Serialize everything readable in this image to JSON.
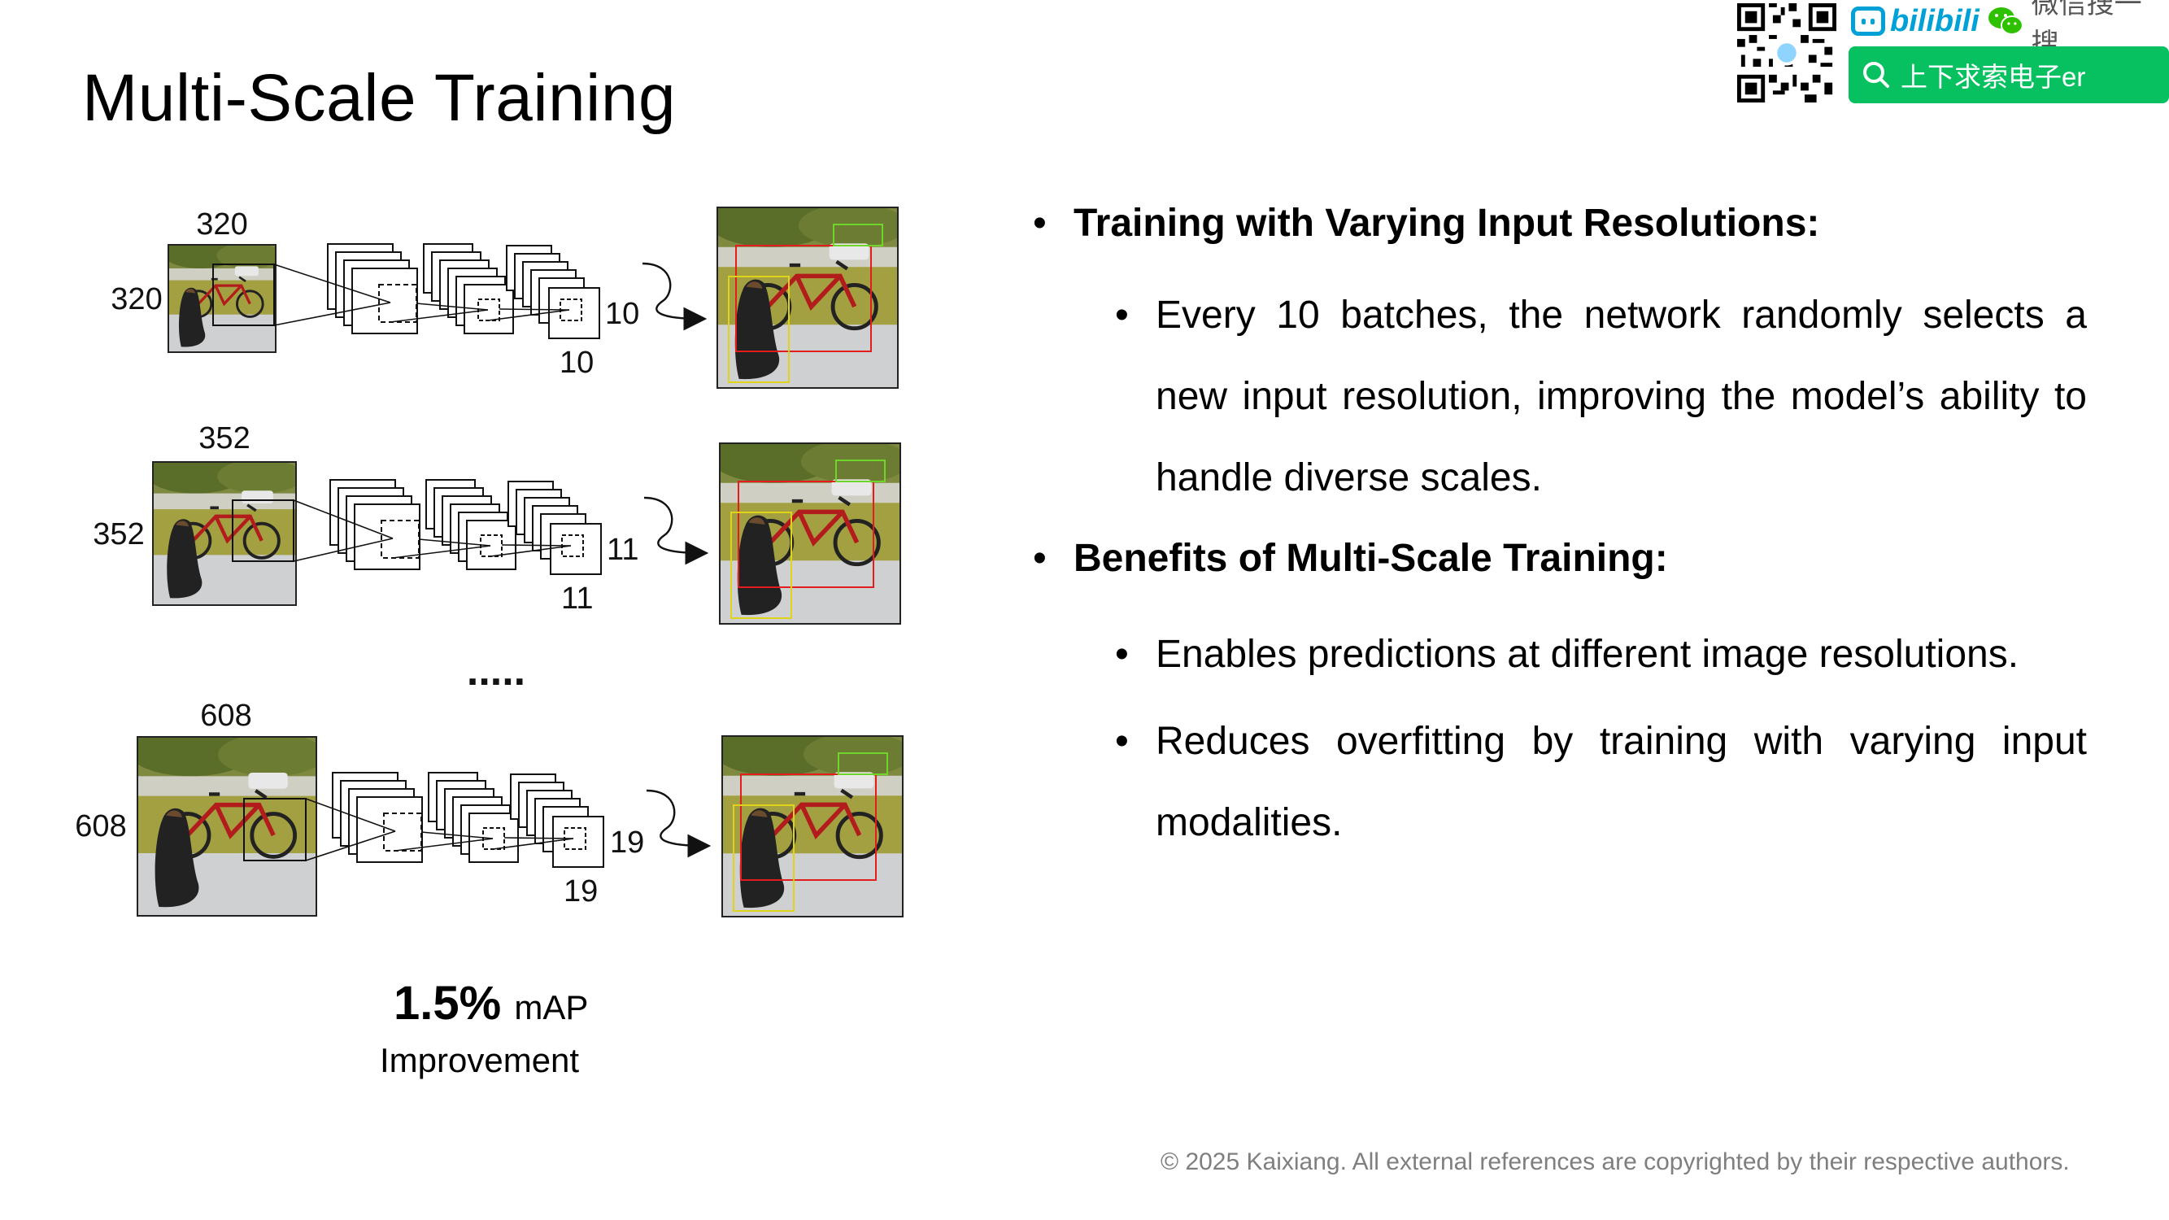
{
  "title": "Multi-Scale Training",
  "watermark": {
    "brand": "bilibili",
    "search_label": "微信搜一搜",
    "search_query": "上下求索电子er"
  },
  "figure": {
    "rows": [
      {
        "input_size": "320",
        "output_size": "10"
      },
      {
        "input_size": "352",
        "output_size": "11"
      },
      {
        "input_size": "608",
        "output_size": "19"
      }
    ],
    "ellipsis": ".....",
    "result_value": "1.5%",
    "result_unit": "mAP",
    "result_caption": "Improvement"
  },
  "bullets": [
    {
      "heading": "Training with Varying Input Resolutions:",
      "items": [
        "Every 10 batches, the network randomly selects a new input resolution, improving the model’s ability to handle diverse scales."
      ]
    },
    {
      "heading": "Benefits of Multi-Scale Training:",
      "items": [
        "Enables predictions at different image resolutions.",
        "Reduces overfitting by training with varying input modalities."
      ]
    }
  ],
  "footer": "© 2025 Kaixiang. All external references are copyrighted by their respective authors."
}
